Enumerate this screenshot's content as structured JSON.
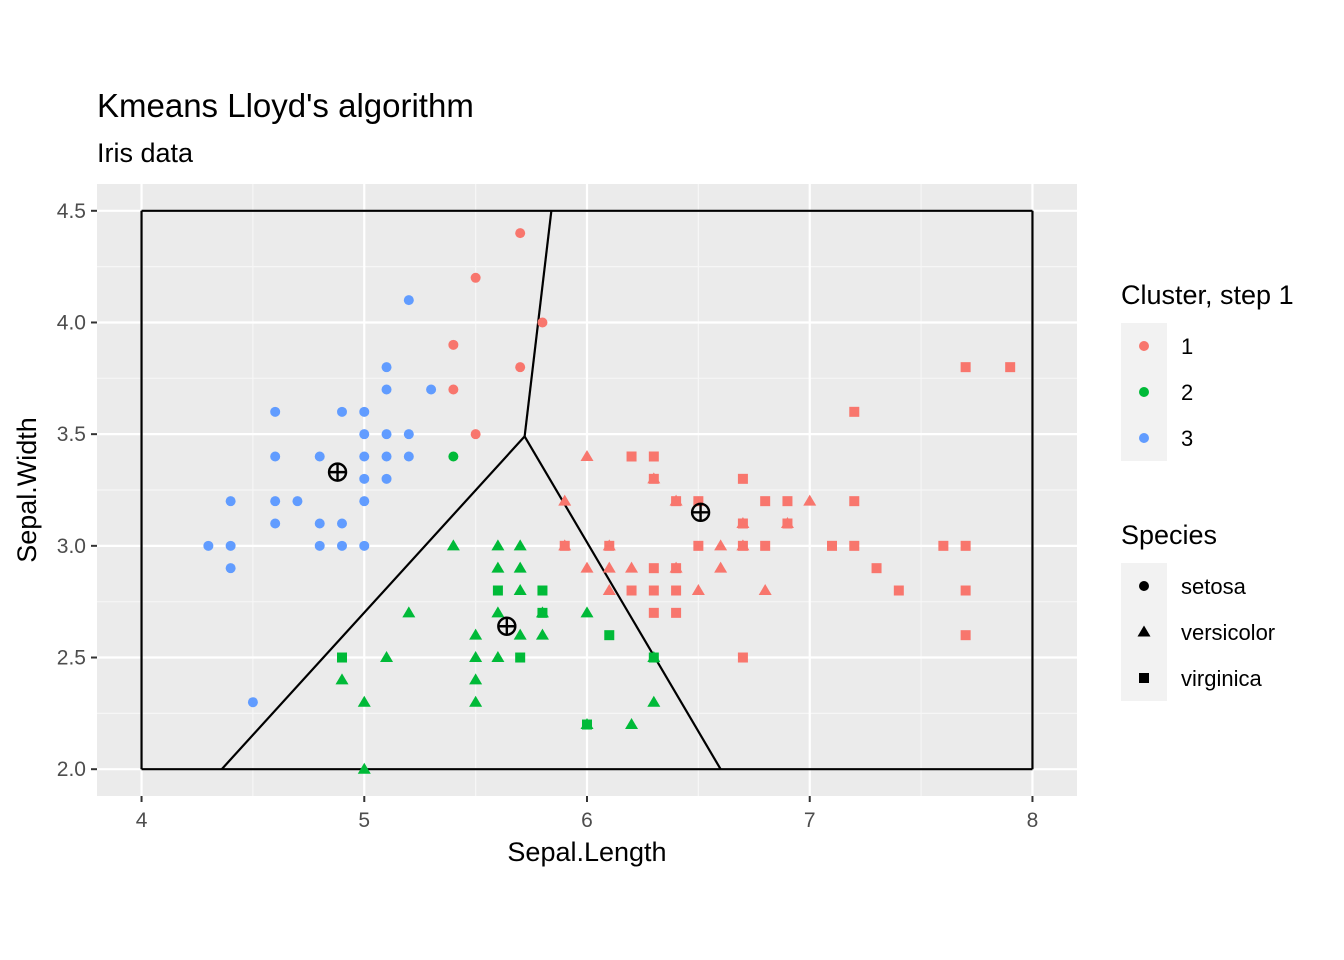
{
  "chart_data": {
    "type": "scatter",
    "title": "Kmeans Lloyd's algorithm",
    "subtitle": "Iris data",
    "xlabel": "Sepal.Length",
    "ylabel": "Sepal.Width",
    "xlim": [
      3.8,
      8.2
    ],
    "ylim": [
      1.88,
      4.62
    ],
    "x_ticks": [
      "4",
      "5",
      "6",
      "7",
      "8"
    ],
    "y_ticks": [
      "2.0",
      "2.5",
      "3.0",
      "3.5",
      "4.0",
      "4.5"
    ],
    "grid": true,
    "legend_placement": "right",
    "cluster_legend": {
      "title": "Cluster, step  1",
      "items": [
        {
          "label": "1",
          "color": "#F8766D"
        },
        {
          "label": "2",
          "color": "#00BA38"
        },
        {
          "label": "3",
          "color": "#619CFF"
        }
      ]
    },
    "shape_legend": {
      "title": "Species",
      "items": [
        {
          "label": "setosa",
          "shape": "circle"
        },
        {
          "label": "versicolor",
          "shape": "triangle"
        },
        {
          "label": "virginica",
          "shape": "square"
        }
      ]
    },
    "points": [
      [
        5.7,
        4.4,
        1,
        "setosa"
      ],
      [
        5.5,
        4.2,
        1,
        "setosa"
      ],
      [
        5.8,
        4.0,
        1,
        "setosa"
      ],
      [
        5.4,
        3.9,
        1,
        "setosa"
      ],
      [
        5.7,
        3.8,
        1,
        "setosa"
      ],
      [
        5.4,
        3.7,
        1,
        "setosa"
      ],
      [
        5.5,
        3.5,
        1,
        "setosa"
      ],
      [
        5.4,
        3.4,
        2,
        "setosa"
      ],
      [
        5.2,
        4.1,
        3,
        "setosa"
      ],
      [
        5.1,
        3.8,
        3,
        "setosa"
      ],
      [
        5.1,
        3.7,
        3,
        "setosa"
      ],
      [
        5.3,
        3.7,
        3,
        "setosa"
      ],
      [
        4.6,
        3.6,
        3,
        "setosa"
      ],
      [
        4.9,
        3.6,
        3,
        "setosa"
      ],
      [
        5.0,
        3.6,
        3,
        "setosa"
      ],
      [
        5.0,
        3.5,
        3,
        "setosa"
      ],
      [
        5.1,
        3.5,
        3,
        "setosa"
      ],
      [
        5.2,
        3.5,
        3,
        "setosa"
      ],
      [
        4.6,
        3.4,
        3,
        "setosa"
      ],
      [
        4.8,
        3.4,
        3,
        "setosa"
      ],
      [
        5.0,
        3.4,
        3,
        "setosa"
      ],
      [
        5.1,
        3.4,
        3,
        "setosa"
      ],
      [
        5.2,
        3.4,
        3,
        "setosa"
      ],
      [
        5.0,
        3.3,
        3,
        "setosa"
      ],
      [
        5.1,
        3.3,
        3,
        "setosa"
      ],
      [
        4.4,
        3.2,
        3,
        "setosa"
      ],
      [
        4.6,
        3.2,
        3,
        "setosa"
      ],
      [
        4.7,
        3.2,
        3,
        "setosa"
      ],
      [
        5.0,
        3.2,
        3,
        "setosa"
      ],
      [
        4.6,
        3.1,
        3,
        "setosa"
      ],
      [
        4.8,
        3.1,
        3,
        "setosa"
      ],
      [
        4.9,
        3.1,
        3,
        "setosa"
      ],
      [
        4.3,
        3.0,
        3,
        "setosa"
      ],
      [
        4.4,
        3.0,
        3,
        "setosa"
      ],
      [
        4.8,
        3.0,
        3,
        "setosa"
      ],
      [
        4.9,
        3.0,
        3,
        "setosa"
      ],
      [
        5.0,
        3.0,
        3,
        "setosa"
      ],
      [
        4.4,
        2.9,
        3,
        "setosa"
      ],
      [
        4.5,
        2.3,
        3,
        "setosa"
      ],
      [
        6.0,
        3.4,
        1,
        "versicolor"
      ],
      [
        6.3,
        3.3,
        1,
        "versicolor"
      ],
      [
        5.9,
        3.2,
        1,
        "versicolor"
      ],
      [
        6.4,
        3.2,
        1,
        "versicolor"
      ],
      [
        7.0,
        3.2,
        1,
        "versicolor"
      ],
      [
        6.7,
        3.1,
        1,
        "versicolor"
      ],
      [
        6.9,
        3.1,
        1,
        "versicolor"
      ],
      [
        5.9,
        3.0,
        1,
        "versicolor"
      ],
      [
        6.1,
        3.0,
        1,
        "versicolor"
      ],
      [
        6.6,
        3.0,
        1,
        "versicolor"
      ],
      [
        6.7,
        3.0,
        1,
        "versicolor"
      ],
      [
        6.0,
        2.9,
        1,
        "versicolor"
      ],
      [
        6.1,
        2.9,
        1,
        "versicolor"
      ],
      [
        6.2,
        2.9,
        1,
        "versicolor"
      ],
      [
        6.4,
        2.9,
        1,
        "versicolor"
      ],
      [
        6.6,
        2.9,
        1,
        "versicolor"
      ],
      [
        6.1,
        2.8,
        1,
        "versicolor"
      ],
      [
        6.5,
        2.8,
        1,
        "versicolor"
      ],
      [
        6.8,
        2.8,
        1,
        "versicolor"
      ],
      [
        5.4,
        3.0,
        2,
        "versicolor"
      ],
      [
        5.6,
        3.0,
        2,
        "versicolor"
      ],
      [
        5.7,
        3.0,
        2,
        "versicolor"
      ],
      [
        5.6,
        2.9,
        2,
        "versicolor"
      ],
      [
        5.7,
        2.9,
        2,
        "versicolor"
      ],
      [
        5.7,
        2.8,
        2,
        "versicolor"
      ],
      [
        5.8,
        2.7,
        2,
        "versicolor"
      ],
      [
        5.2,
        2.7,
        2,
        "versicolor"
      ],
      [
        5.6,
        2.7,
        2,
        "versicolor"
      ],
      [
        6.0,
        2.7,
        2,
        "versicolor"
      ],
      [
        5.5,
        2.6,
        2,
        "versicolor"
      ],
      [
        5.7,
        2.6,
        2,
        "versicolor"
      ],
      [
        5.8,
        2.6,
        2,
        "versicolor"
      ],
      [
        5.5,
        2.5,
        2,
        "versicolor"
      ],
      [
        5.6,
        2.5,
        2,
        "versicolor"
      ],
      [
        6.3,
        2.5,
        2,
        "versicolor"
      ],
      [
        5.1,
        2.5,
        2,
        "versicolor"
      ],
      [
        4.9,
        2.4,
        2,
        "versicolor"
      ],
      [
        5.5,
        2.4,
        2,
        "versicolor"
      ],
      [
        5.0,
        2.3,
        2,
        "versicolor"
      ],
      [
        5.5,
        2.3,
        2,
        "versicolor"
      ],
      [
        6.3,
        2.3,
        2,
        "versicolor"
      ],
      [
        6.0,
        2.2,
        2,
        "versicolor"
      ],
      [
        6.2,
        2.2,
        2,
        "versicolor"
      ],
      [
        5.0,
        2.0,
        2,
        "versicolor"
      ],
      [
        7.7,
        3.8,
        1,
        "virginica"
      ],
      [
        7.9,
        3.8,
        1,
        "virginica"
      ],
      [
        7.2,
        3.6,
        1,
        "virginica"
      ],
      [
        6.2,
        3.4,
        1,
        "virginica"
      ],
      [
        6.3,
        3.4,
        1,
        "virginica"
      ],
      [
        6.3,
        3.3,
        1,
        "virginica"
      ],
      [
        6.7,
        3.3,
        1,
        "virginica"
      ],
      [
        6.4,
        3.2,
        1,
        "virginica"
      ],
      [
        6.5,
        3.2,
        1,
        "virginica"
      ],
      [
        6.8,
        3.2,
        1,
        "virginica"
      ],
      [
        6.9,
        3.2,
        1,
        "virginica"
      ],
      [
        7.2,
        3.2,
        1,
        "virginica"
      ],
      [
        6.7,
        3.1,
        1,
        "virginica"
      ],
      [
        6.9,
        3.1,
        1,
        "virginica"
      ],
      [
        5.9,
        3.0,
        1,
        "virginica"
      ],
      [
        6.1,
        3.0,
        1,
        "virginica"
      ],
      [
        6.5,
        3.0,
        1,
        "virginica"
      ],
      [
        6.7,
        3.0,
        1,
        "virginica"
      ],
      [
        6.8,
        3.0,
        1,
        "virginica"
      ],
      [
        7.1,
        3.0,
        1,
        "virginica"
      ],
      [
        7.2,
        3.0,
        1,
        "virginica"
      ],
      [
        7.6,
        3.0,
        1,
        "virginica"
      ],
      [
        7.7,
        3.0,
        1,
        "virginica"
      ],
      [
        6.3,
        2.9,
        1,
        "virginica"
      ],
      [
        6.4,
        2.9,
        1,
        "virginica"
      ],
      [
        7.3,
        2.9,
        1,
        "virginica"
      ],
      [
        6.2,
        2.8,
        1,
        "virginica"
      ],
      [
        6.3,
        2.8,
        1,
        "virginica"
      ],
      [
        6.4,
        2.8,
        1,
        "virginica"
      ],
      [
        7.4,
        2.8,
        1,
        "virginica"
      ],
      [
        7.7,
        2.8,
        1,
        "virginica"
      ],
      [
        6.3,
        2.7,
        1,
        "virginica"
      ],
      [
        6.4,
        2.7,
        1,
        "virginica"
      ],
      [
        7.7,
        2.6,
        1,
        "virginica"
      ],
      [
        6.7,
        2.5,
        1,
        "virginica"
      ],
      [
        5.6,
        2.8,
        2,
        "virginica"
      ],
      [
        5.8,
        2.8,
        2,
        "virginica"
      ],
      [
        5.8,
        2.7,
        2,
        "virginica"
      ],
      [
        6.1,
        2.6,
        2,
        "virginica"
      ],
      [
        4.9,
        2.5,
        2,
        "virginica"
      ],
      [
        5.7,
        2.5,
        2,
        "virginica"
      ],
      [
        6.3,
        2.5,
        2,
        "virginica"
      ],
      [
        6.0,
        2.2,
        2,
        "virginica"
      ]
    ],
    "centroids": [
      {
        "cluster": "1",
        "x": 6.51,
        "y": 3.15
      },
      {
        "cluster": "2",
        "x": 5.64,
        "y": 2.64
      },
      {
        "cluster": "3",
        "x": 4.88,
        "y": 3.33
      }
    ],
    "voronoi_segments": [
      [
        [
          4.0,
          2.0
        ],
        [
          8.0,
          2.0
        ]
      ],
      [
        [
          8.0,
          2.0
        ],
        [
          8.0,
          4.5
        ]
      ],
      [
        [
          8.0,
          4.5
        ],
        [
          4.0,
          4.5
        ]
      ],
      [
        [
          4.0,
          4.5
        ],
        [
          4.0,
          2.0
        ]
      ],
      [
        [
          5.72,
          3.49
        ],
        [
          5.84,
          4.5
        ]
      ],
      [
        [
          5.72,
          3.49
        ],
        [
          4.36,
          2.0
        ]
      ],
      [
        [
          5.72,
          3.49
        ],
        [
          6.6,
          2.0
        ]
      ]
    ]
  }
}
